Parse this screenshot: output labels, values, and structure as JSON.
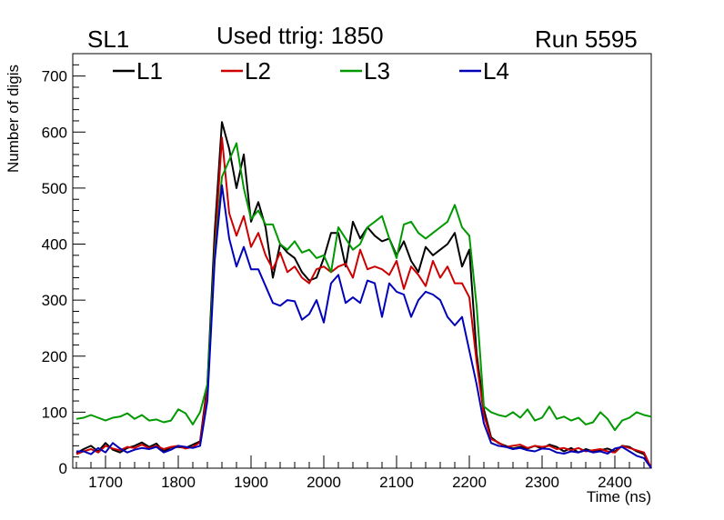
{
  "header": {
    "left": "SL1",
    "title": "Used ttrig: 1850",
    "right": "Run 5595"
  },
  "chart_data": {
    "type": "line",
    "title": "Used ttrig: 1850",
    "xlabel": "Time (ns)",
    "ylabel": "Number of digis",
    "xlim": [
      1655,
      2450
    ],
    "ylim": [
      0,
      740
    ],
    "xticks": [
      1700,
      1800,
      1900,
      2000,
      2100,
      2200,
      2300,
      2400
    ],
    "yticks": [
      0,
      100,
      200,
      300,
      400,
      500,
      600,
      700
    ],
    "grid": false,
    "legend_position": "top",
    "x": [
      1660,
      1670,
      1680,
      1690,
      1700,
      1710,
      1720,
      1730,
      1740,
      1750,
      1760,
      1770,
      1780,
      1790,
      1800,
      1810,
      1820,
      1830,
      1840,
      1850,
      1860,
      1870,
      1880,
      1890,
      1900,
      1910,
      1920,
      1930,
      1940,
      1950,
      1960,
      1970,
      1980,
      1990,
      2000,
      2010,
      2020,
      2030,
      2040,
      2050,
      2060,
      2070,
      2080,
      2090,
      2100,
      2110,
      2120,
      2130,
      2140,
      2150,
      2160,
      2170,
      2180,
      2190,
      2200,
      2210,
      2220,
      2230,
      2240,
      2250,
      2260,
      2270,
      2280,
      2290,
      2300,
      2310,
      2320,
      2330,
      2340,
      2350,
      2360,
      2370,
      2380,
      2390,
      2400,
      2410,
      2420,
      2430,
      2440,
      2450
    ],
    "series": [
      {
        "name": "L1",
        "color": "#000000",
        "values": [
          27,
          34,
          40,
          30,
          45,
          33,
          28,
          36,
          40,
          46,
          38,
          44,
          30,
          37,
          38,
          36,
          42,
          48,
          150,
          420,
          618,
          570,
          500,
          560,
          440,
          475,
          430,
          340,
          400,
          385,
          375,
          350,
          335,
          340,
          375,
          420,
          420,
          360,
          440,
          410,
          430,
          415,
          405,
          410,
          380,
          405,
          370,
          350,
          395,
          380,
          390,
          400,
          420,
          360,
          390,
          205,
          105,
          55,
          45,
          40,
          35,
          38,
          35,
          40,
          35,
          42,
          38,
          30,
          36,
          28,
          34,
          30,
          32,
          35,
          30,
          40,
          38,
          30,
          25,
          0
        ]
      },
      {
        "name": "L2",
        "color": "#cc0000",
        "values": [
          25,
          30,
          34,
          28,
          40,
          35,
          32,
          38,
          36,
          42,
          36,
          40,
          34,
          38,
          40,
          35,
          38,
          46,
          140,
          390,
          590,
          455,
          415,
          450,
          395,
          420,
          380,
          355,
          385,
          350,
          360,
          340,
          330,
          355,
          360,
          350,
          360,
          365,
          340,
          390,
          355,
          360,
          355,
          345,
          370,
          320,
          360,
          345,
          325,
          370,
          340,
          360,
          330,
          330,
          305,
          190,
          95,
          52,
          46,
          38,
          40,
          42,
          36,
          40,
          38,
          40,
          34,
          36,
          32,
          36,
          30,
          32,
          34,
          30,
          28,
          40,
          36,
          32,
          28,
          0
        ]
      },
      {
        "name": "L3",
        "color": "#009900",
        "values": [
          88,
          90,
          95,
          90,
          85,
          90,
          92,
          98,
          88,
          95,
          85,
          87,
          82,
          85,
          105,
          98,
          78,
          100,
          150,
          380,
          520,
          550,
          580,
          500,
          445,
          460,
          435,
          435,
          400,
          390,
          405,
          385,
          390,
          375,
          380,
          350,
          430,
          410,
          390,
          400,
          430,
          440,
          450,
          410,
          375,
          435,
          440,
          420,
          410,
          420,
          430,
          440,
          470,
          430,
          415,
          290,
          110,
          100,
          95,
          92,
          100,
          90,
          105,
          85,
          90,
          110,
          88,
          92,
          85,
          90,
          78,
          82,
          100,
          88,
          68,
          85,
          90,
          100,
          95,
          92
        ]
      },
      {
        "name": "L4",
        "color": "#0000bb",
        "values": [
          30,
          30,
          25,
          36,
          28,
          45,
          35,
          28,
          33,
          36,
          34,
          38,
          28,
          33,
          40,
          38,
          36,
          40,
          120,
          370,
          505,
          410,
          360,
          395,
          355,
          355,
          325,
          295,
          290,
          300,
          298,
          265,
          275,
          300,
          260,
          330,
          345,
          295,
          305,
          295,
          335,
          330,
          270,
          330,
          315,
          310,
          270,
          300,
          315,
          310,
          300,
          270,
          255,
          270,
          210,
          150,
          80,
          45,
          40,
          38,
          34,
          36,
          32,
          30,
          35,
          34,
          28,
          26,
          30,
          28,
          32,
          28,
          30,
          26,
          35,
          38,
          30,
          22,
          18,
          0
        ]
      }
    ]
  }
}
